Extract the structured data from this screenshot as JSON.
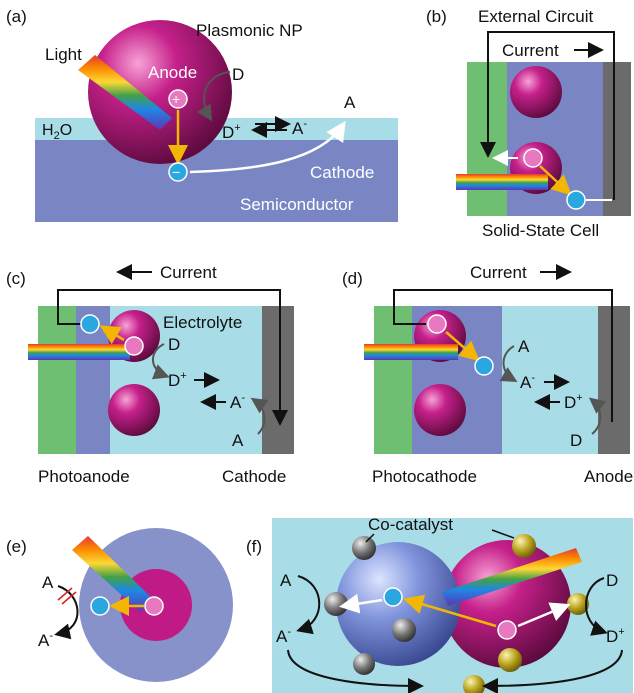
{
  "panel_a": {
    "tag": "(a)",
    "np_label": "Plasmonic NP",
    "light": "Light",
    "anode": "Anode",
    "donor": "D",
    "water_prefix": "H",
    "water_sub": "2",
    "water_suffix": "O",
    "dplus": "D",
    "aminus": "A",
    "acceptor": "A",
    "cathode": "Cathode",
    "semiconductor": "Semiconductor",
    "plus": "+",
    "minus": "−",
    "sup_minus": "-"
  },
  "panel_b": {
    "tag": "(b)",
    "external_circuit": "External Circuit",
    "current": "Current",
    "cell": "Solid-State Cell"
  },
  "panel_c": {
    "tag": "(c)",
    "current": "Current",
    "electrolyte": "Electrolyte",
    "donor": "D",
    "dplus": "D",
    "aminus": "A",
    "acceptor": "A",
    "photoanode": "Photoanode",
    "cathode": "Cathode"
  },
  "panel_d": {
    "tag": "(d)",
    "current": "Current",
    "acceptor": "A",
    "aminus": "A",
    "dplus": "D",
    "donor": "D",
    "photocathode": "Photocathode",
    "anode": "Anode"
  },
  "panel_e": {
    "tag": "(e)",
    "acceptor": "A",
    "aminus": "A"
  },
  "panel_f": {
    "tag": "(f)",
    "cocatalyst": "Co-catalyst",
    "acceptor": "A",
    "aminus": "A",
    "donor": "D",
    "dplus": "D"
  },
  "colors": {
    "water": "#a8dce6",
    "semiconductor": "#7a86c4",
    "green": "#6fbf73",
    "grey": "#6b6b6b",
    "magenta": "#c01a86",
    "electron": "#2aa7e0",
    "hole": "#e879c0",
    "arrow_yellow": "#f2b705"
  }
}
